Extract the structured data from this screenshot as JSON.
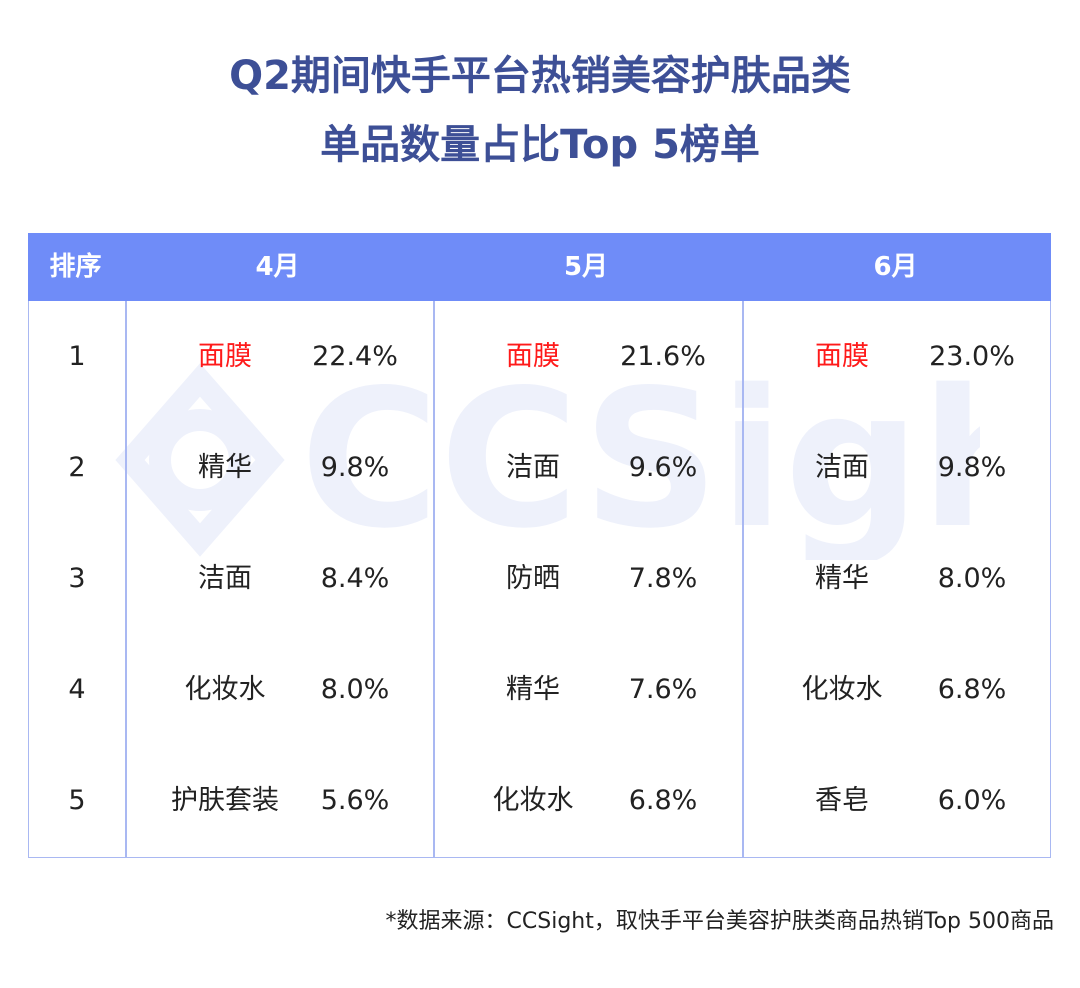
{
  "title_line1": "Q2期间快手平台热销美容护肤品类",
  "title_line2": "单品数量占比Top 5榜单",
  "watermark_text": "CCSight",
  "header": {
    "rank": "排序",
    "months": [
      "4月",
      "5月",
      "6月"
    ]
  },
  "rows": [
    {
      "rank": "1",
      "cells": [
        {
          "name": "面膜",
          "pct": "22.4%"
        },
        {
          "name": "面膜",
          "pct": "21.6%"
        },
        {
          "name": "面膜",
          "pct": "23.0%"
        }
      ]
    },
    {
      "rank": "2",
      "cells": [
        {
          "name": "精华",
          "pct": "9.8%"
        },
        {
          "name": "洁面",
          "pct": "9.6%"
        },
        {
          "name": "洁面",
          "pct": "9.8%"
        }
      ]
    },
    {
      "rank": "3",
      "cells": [
        {
          "name": "洁面",
          "pct": "8.4%"
        },
        {
          "name": "防晒",
          "pct": "7.8%"
        },
        {
          "name": "精华",
          "pct": "8.0%"
        }
      ]
    },
    {
      "rank": "4",
      "cells": [
        {
          "name": "化妆水",
          "pct": "8.0%"
        },
        {
          "name": "精华",
          "pct": "7.6%"
        },
        {
          "name": "化妆水",
          "pct": "6.8%"
        }
      ]
    },
    {
      "rank": "5",
      "cells": [
        {
          "name": "护肤套装",
          "pct": "5.6%"
        },
        {
          "name": "化妆水",
          "pct": "6.8%"
        },
        {
          "name": "香皂",
          "pct": "6.0%"
        }
      ]
    }
  ],
  "highlight_color": "#ff1a1a",
  "header_color": "#6f8cf8",
  "title_color": "#3d4f96",
  "footnote": "*数据来源：CCSight，取快手平台美容护肤类商品热销Top 500商品",
  "chart_data": {
    "type": "table",
    "title": "Q2期间快手平台热销美容护肤品类 单品数量占比Top 5榜单",
    "columns": [
      "排序",
      "4月",
      "5月",
      "6月"
    ],
    "series": [
      {
        "name": "4月",
        "categories": [
          "面膜",
          "精华",
          "洁面",
          "化妆水",
          "护肤套装"
        ],
        "values": [
          22.4,
          9.8,
          8.4,
          8.0,
          5.6
        ]
      },
      {
        "name": "5月",
        "categories": [
          "面膜",
          "洁面",
          "防晒",
          "精华",
          "化妆水"
        ],
        "values": [
          21.6,
          9.6,
          7.8,
          7.6,
          6.8
        ]
      },
      {
        "name": "6月",
        "categories": [
          "面膜",
          "洁面",
          "精华",
          "化妆水",
          "香皂"
        ],
        "values": [
          23.0,
          9.8,
          8.0,
          6.8,
          6.0
        ]
      }
    ]
  }
}
